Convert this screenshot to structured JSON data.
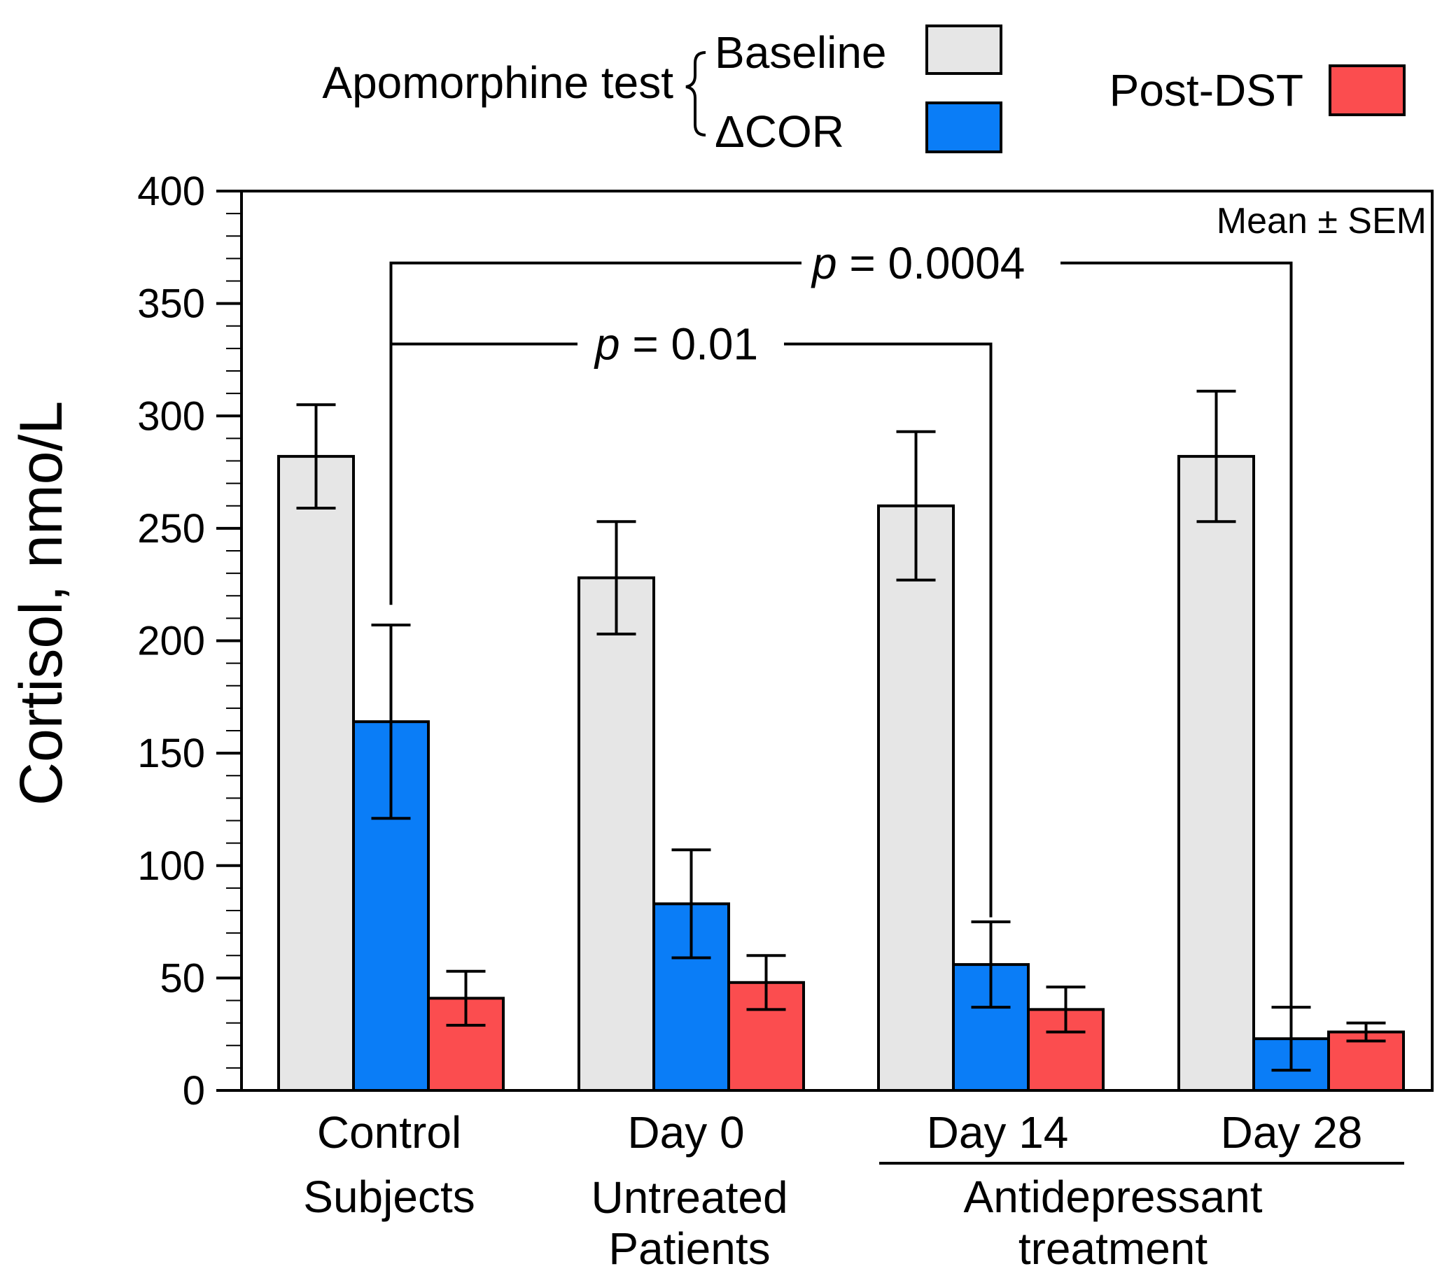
{
  "chart_data": {
    "type": "bar",
    "ylabel": "Cortisol, nmo/L",
    "ylim": [
      0,
      400
    ],
    "ytick_step": 50,
    "yticks": [
      "0",
      "50",
      "100",
      "150",
      "200",
      "250",
      "300",
      "350",
      "400"
    ],
    "annotation": "Mean ± SEM",
    "categories": [
      {
        "line1": "Control",
        "line2": "Subjects"
      },
      {
        "line1": "Day 0",
        "line2": ""
      },
      {
        "line1": "Day 14",
        "line2": ""
      },
      {
        "line1": "Day 28",
        "line2": ""
      }
    ],
    "group_labels": [
      {
        "lines": [
          "Untreated",
          "Patients"
        ]
      },
      {
        "lines": [
          "Antidepressant",
          "treatment"
        ]
      }
    ],
    "series": [
      {
        "name": "Baseline",
        "color": "#e6e6e6",
        "values": [
          282,
          228,
          260,
          282
        ],
        "errors": [
          23,
          25,
          33,
          29
        ]
      },
      {
        "name": "ΔCOR",
        "color": "#0a7df7",
        "values": [
          164,
          83,
          56,
          23
        ],
        "errors": [
          43,
          24,
          19,
          14
        ]
      },
      {
        "name": "Post-DST",
        "color": "#fb4d4f",
        "values": [
          41,
          48,
          36,
          26
        ],
        "errors": [
          12,
          12,
          10,
          4
        ]
      }
    ],
    "legend": {
      "group_title": "Apomorphine test",
      "items": [
        "Baseline",
        "ΔCOR",
        "Post-DST"
      ]
    },
    "significance": [
      {
        "label_p": "p",
        "label_value": " = 0.0004",
        "from_category": 0,
        "to_category": 3,
        "level": 368
      },
      {
        "label_p": "p",
        "label_value": " = 0.01",
        "from_category": 0,
        "to_category": 2,
        "level": 332
      }
    ]
  }
}
